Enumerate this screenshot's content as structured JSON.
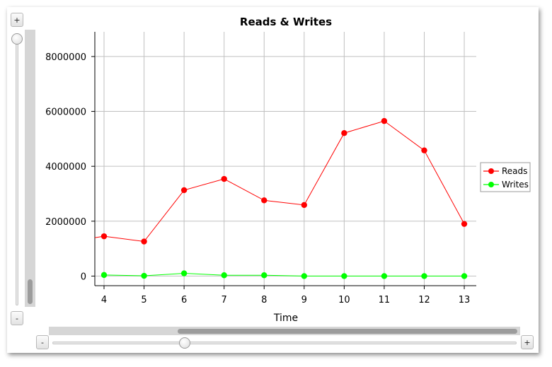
{
  "controls": {
    "zoom_in_vertical": "+",
    "zoom_out_vertical": "-",
    "zoom_in_horizontal": "+",
    "zoom_out_horizontal": "-",
    "vertical_slider_level": 1.0,
    "horizontal_slider_level": 0.28
  },
  "colors": {
    "reads": "#ff0000",
    "writes": "#00ff00",
    "grid": "#c0c0c0",
    "axis": "#000000"
  },
  "chart_data": {
    "type": "line",
    "title": "Reads & Writes",
    "xlabel": "Time",
    "ylabel": "",
    "x": [
      4,
      5,
      6,
      7,
      8,
      9,
      10,
      11,
      12,
      13
    ],
    "xlim": [
      3.77,
      13.3
    ],
    "ylim": [
      -350000,
      8900000
    ],
    "yticks": [
      0,
      2000000,
      4000000,
      6000000,
      8000000
    ],
    "ytick_labels": [
      "0",
      "2000000",
      "4000000",
      "6000000",
      "8000000"
    ],
    "xtick_labels": [
      "4",
      "5",
      "6",
      "7",
      "8",
      "9",
      "10",
      "11",
      "12",
      "13"
    ],
    "grid": true,
    "legend_position": "right",
    "series": [
      {
        "name": "Reads",
        "values": [
          1450000,
          1260000,
          3130000,
          3540000,
          2760000,
          2590000,
          5210000,
          5650000,
          4580000,
          1900000
        ],
        "lead_in": [
          3.77,
          1400000
        ]
      },
      {
        "name": "Writes",
        "values": [
          40000,
          10000,
          100000,
          30000,
          30000,
          0,
          0,
          0,
          0,
          0
        ]
      }
    ]
  }
}
